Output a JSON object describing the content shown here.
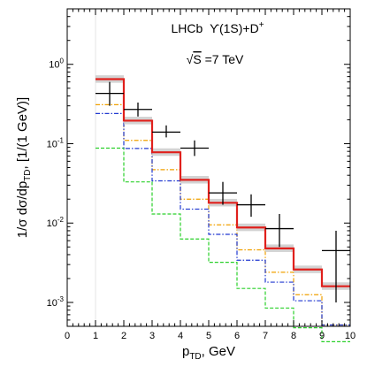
{
  "chart_data": {
    "type": "step",
    "title": "",
    "annotations": {
      "line1_prefix": "LHCb",
      "line1_upsilon": "ϒ(1S)+D",
      "line1_sup": "+",
      "line2_sqrt": "√",
      "line2_var": "S",
      "line2_rest": " =7 TeV"
    },
    "xlabel": {
      "main": "p",
      "sub": "TD",
      "rest": ", GeV"
    },
    "ylabel": {
      "pre": "1/σ dσ/dp",
      "sub": "TD",
      "post": ", [1/(1 GeV)]"
    },
    "xlim": [
      0,
      10
    ],
    "ylim": [
      0.0005,
      5
    ],
    "yscale": "log",
    "x_ticks": [
      "0",
      "1",
      "2",
      "3",
      "4",
      "5",
      "6",
      "7",
      "8",
      "9",
      "10"
    ],
    "y_ticks": [
      {
        "value": 0.001,
        "base": "10",
        "exp": "-3"
      },
      {
        "value": 0.01,
        "base": "10",
        "exp": "-2"
      },
      {
        "value": 0.1,
        "base": "10",
        "exp": "-1"
      },
      {
        "value": 1,
        "base": "10",
        "exp": "0"
      }
    ],
    "bin_edges": [
      1,
      2,
      3,
      4,
      5,
      6,
      7,
      8,
      9,
      10
    ],
    "series": [
      {
        "style": "solid-red",
        "color": "#e0201c",
        "values": [
          0.65,
          0.195,
          0.078,
          0.035,
          0.018,
          0.0088,
          0.0048,
          0.0026,
          0.0016
        ]
      },
      {
        "style": "dashdot-blue",
        "color": "#2038d0",
        "values": [
          0.24,
          0.087,
          0.034,
          0.015,
          0.0072,
          0.0034,
          0.0018,
          0.00105,
          0.00052
        ]
      },
      {
        "style": "dashdot-orange",
        "color": "#f0a000",
        "values": [
          0.31,
          0.11,
          0.047,
          0.02,
          0.0095,
          0.0046,
          0.0024,
          0.00125,
          0.00052
        ]
      },
      {
        "style": "dashed-green",
        "color": "#2ad02a",
        "values": [
          0.088,
          0.033,
          0.013,
          0.0063,
          0.0032,
          0.0015,
          0.00085,
          0.00048,
          0.00032
        ]
      }
    ],
    "data_points": [
      {
        "x": 1.5,
        "y": 0.43,
        "y_low": 0.3,
        "y_high": 0.6
      },
      {
        "x": 2.5,
        "y": 0.27,
        "y_low": 0.22,
        "y_high": 0.33
      },
      {
        "x": 3.5,
        "y": 0.14,
        "y_low": 0.12,
        "y_high": 0.17
      },
      {
        "x": 4.5,
        "y": 0.088,
        "y_low": 0.07,
        "y_high": 0.11
      },
      {
        "x": 5.5,
        "y": 0.024,
        "y_low": 0.017,
        "y_high": 0.033
      },
      {
        "x": 6.5,
        "y": 0.017,
        "y_low": 0.012,
        "y_high": 0.023
      },
      {
        "x": 7.5,
        "y": 0.0085,
        "y_low": 0.005,
        "y_high": 0.013
      },
      {
        "x": 9.5,
        "y": 0.0045,
        "y_low": 0.001,
        "y_high": 0.008
      }
    ]
  }
}
